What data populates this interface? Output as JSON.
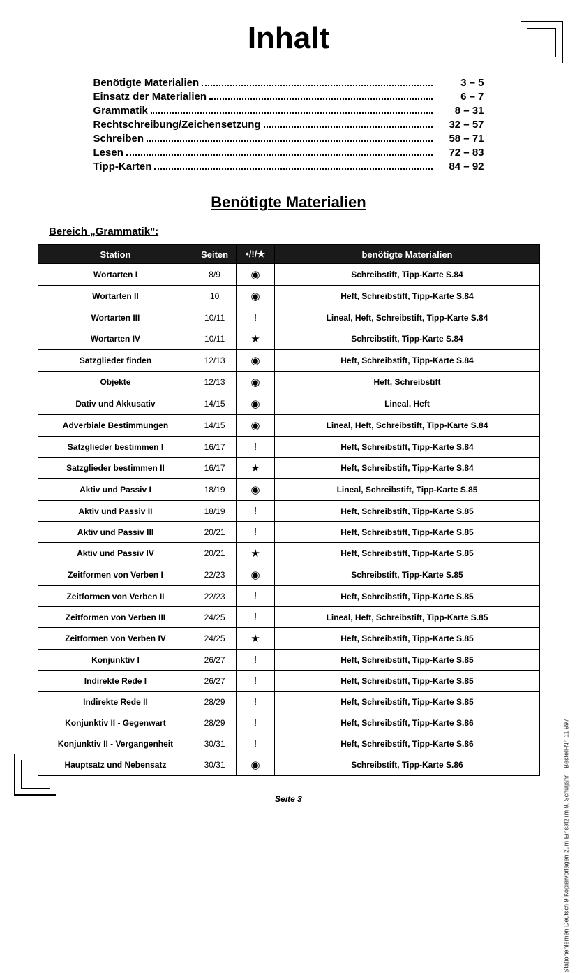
{
  "title": "Inhalt",
  "toc": [
    {
      "label": "Benötigte Materialien",
      "pages": "3 –   5"
    },
    {
      "label": "Einsatz der Materialien",
      "pages": "6 –   7"
    },
    {
      "label": "Grammatik",
      "pages": "8 – 31"
    },
    {
      "label": "Rechtschreibung/Zeichensetzung",
      "pages": "32 – 57"
    },
    {
      "label": "Schreiben",
      "pages": "58 – 71"
    },
    {
      "label": "Lesen",
      "pages": "72 – 83"
    },
    {
      "label": "Tipp-Karten",
      "pages": "84 – 92"
    }
  ],
  "section_title": "Benötigte Materialien",
  "area_label": "Bereich „Grammatik\":",
  "table": {
    "headers": [
      "Station",
      "Seiten",
      "•/!/★",
      "benötigte Materialien"
    ],
    "symbols": {
      "dot": "◉",
      "excl": "!",
      "star": "★"
    },
    "rows": [
      {
        "station": "Wortarten I",
        "seiten": "8/9",
        "sym": "◉",
        "mat": "Schreibstift, Tipp-Karte S.84"
      },
      {
        "station": "Wortarten II",
        "seiten": "10",
        "sym": "◉",
        "mat": "Heft, Schreibstift, Tipp-Karte S.84"
      },
      {
        "station": "Wortarten III",
        "seiten": "10/11",
        "sym": "!",
        "mat": "Lineal, Heft, Schreibstift, Tipp-Karte S.84"
      },
      {
        "station": "Wortarten IV",
        "seiten": "10/11",
        "sym": "★",
        "mat": "Schreibstift, Tipp-Karte S.84"
      },
      {
        "station": "Satzglieder finden",
        "seiten": "12/13",
        "sym": "◉",
        "mat": "Heft, Schreibstift, Tipp-Karte S.84"
      },
      {
        "station": "Objekte",
        "seiten": "12/13",
        "sym": "◉",
        "mat": "Heft, Schreibstift"
      },
      {
        "station": "Dativ und Akkusativ",
        "seiten": "14/15",
        "sym": "◉",
        "mat": "Lineal, Heft"
      },
      {
        "station": "Adverbiale Bestimmungen",
        "seiten": "14/15",
        "sym": "◉",
        "mat": "Lineal, Heft, Schreibstift, Tipp-Karte S.84"
      },
      {
        "station": "Satzglieder bestimmen I",
        "seiten": "16/17",
        "sym": "!",
        "mat": "Heft, Schreibstift, Tipp-Karte S.84"
      },
      {
        "station": "Satzglieder bestimmen II",
        "seiten": "16/17",
        "sym": "★",
        "mat": "Heft, Schreibstift, Tipp-Karte S.84"
      },
      {
        "station": "Aktiv und Passiv I",
        "seiten": "18/19",
        "sym": "◉",
        "mat": "Lineal, Schreibstift, Tipp-Karte S.85"
      },
      {
        "station": "Aktiv und Passiv II",
        "seiten": "18/19",
        "sym": "!",
        "mat": "Heft, Schreibstift, Tipp-Karte S.85"
      },
      {
        "station": "Aktiv und Passiv III",
        "seiten": "20/21",
        "sym": "!",
        "mat": "Heft, Schreibstift, Tipp-Karte S.85"
      },
      {
        "station": "Aktiv und Passiv IV",
        "seiten": "20/21",
        "sym": "★",
        "mat": "Heft, Schreibstift, Tipp-Karte S.85"
      },
      {
        "station": "Zeitformen von Verben I",
        "seiten": "22/23",
        "sym": "◉",
        "mat": "Schreibstift, Tipp-Karte S.85"
      },
      {
        "station": "Zeitformen von Verben II",
        "seiten": "22/23",
        "sym": "!",
        "mat": "Heft, Schreibstift, Tipp-Karte S.85"
      },
      {
        "station": "Zeitformen von Verben III",
        "seiten": "24/25",
        "sym": "!",
        "mat": "Lineal, Heft, Schreibstift, Tipp-Karte S.85"
      },
      {
        "station": "Zeitformen von Verben IV",
        "seiten": "24/25",
        "sym": "★",
        "mat": "Heft, Schreibstift, Tipp-Karte S.85"
      },
      {
        "station": "Konjunktiv I",
        "seiten": "26/27",
        "sym": "!",
        "mat": "Heft, Schreibstift, Tipp-Karte S.85"
      },
      {
        "station": "Indirekte Rede I",
        "seiten": "26/27",
        "sym": "!",
        "mat": "Heft, Schreibstift, Tipp-Karte S.85"
      },
      {
        "station": "Indirekte Rede II",
        "seiten": "28/29",
        "sym": "!",
        "mat": "Heft, Schreibstift, Tipp-Karte S.85"
      },
      {
        "station": "Konjunktiv II - Gegenwart",
        "seiten": "28/29",
        "sym": "!",
        "mat": "Heft, Schreibstift, Tipp-Karte S.86"
      },
      {
        "station": "Konjunktiv II - Vergangenheit",
        "seiten": "30/31",
        "sym": "!",
        "mat": "Heft, Schreibstift, Tipp-Karte S.86"
      },
      {
        "station": "Hauptsatz und Nebensatz",
        "seiten": "30/31",
        "sym": "◉",
        "mat": "Schreibstift, Tipp-Karte S.86"
      }
    ]
  },
  "footer": "Seite 3",
  "side_text": "Stationenlernen Deutsch 9\nKopiervorlagen zum Einsatz im 9. Schuljahr   –   Bestell-Nr. 11 997"
}
